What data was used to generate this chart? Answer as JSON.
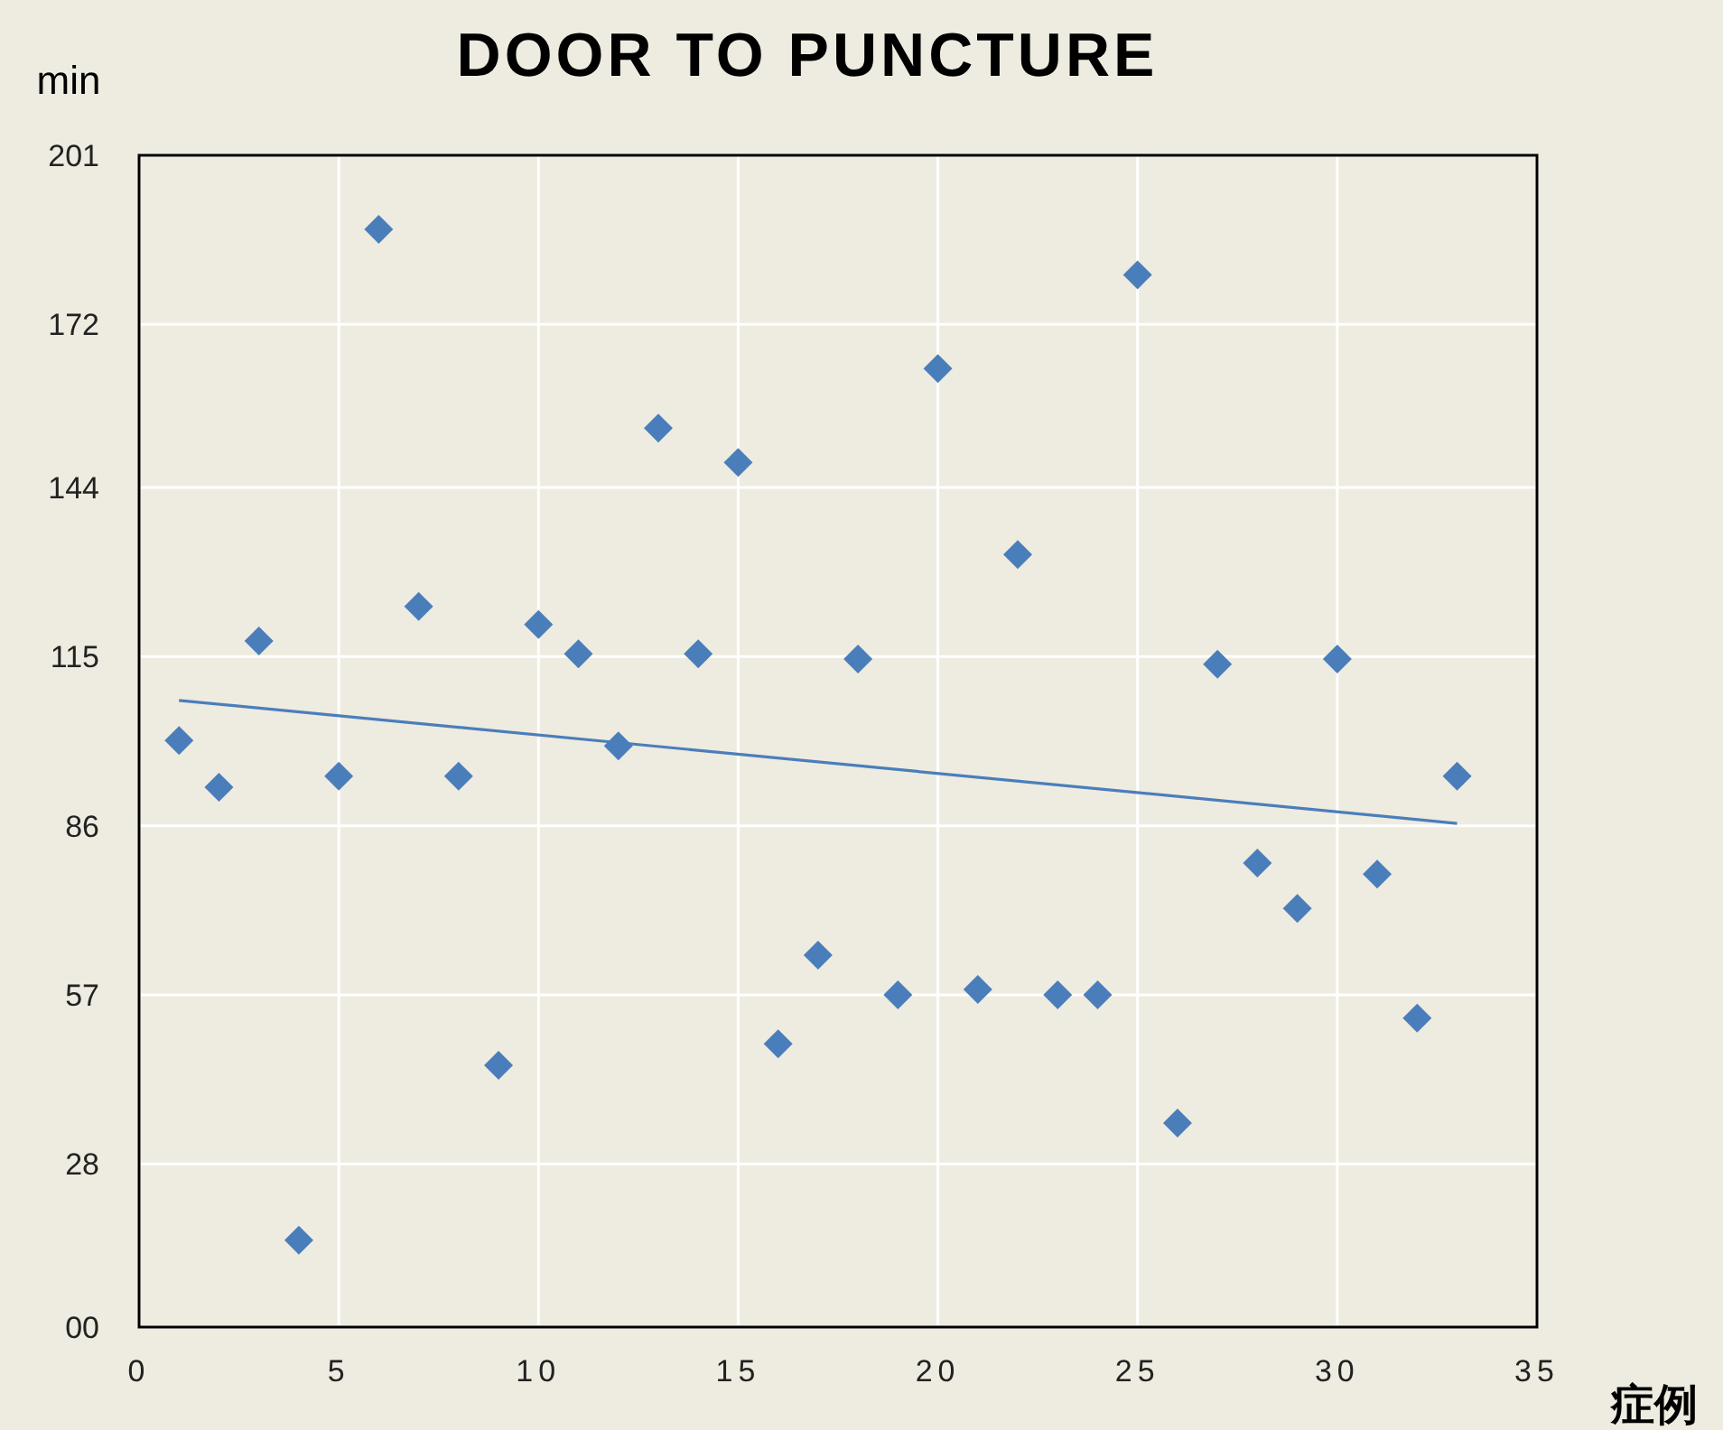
{
  "chart_data": {
    "type": "scatter",
    "title": "DOOR TO PUNCTURE",
    "xlabel": "症例",
    "ylabel": "min",
    "x": [
      1,
      2,
      3,
      4,
      5,
      6,
      7,
      8,
      9,
      10,
      11,
      12,
      13,
      14,
      15,
      16,
      17,
      18,
      19,
      20,
      21,
      22,
      23,
      24,
      25,
      26,
      27,
      28,
      29,
      30,
      31,
      32,
      33
    ],
    "series": [
      {
        "color": "#4a7ebb",
        "marker": "diamond",
        "values": [
          100.6,
          92.6,
          117.7,
          14.9,
          94.5,
          188.3,
          123.6,
          94.5,
          44.9,
          120.5,
          115.5,
          99.7,
          154.2,
          115.5,
          148.3,
          48.6,
          63.8,
          114.6,
          57.0,
          164.4,
          57.9,
          132.5,
          57.0,
          57.0,
          180.5,
          35.0,
          113.7,
          79.6,
          71.8,
          114.6,
          77.7,
          53.0,
          94.5
        ]
      },
      {
        "type": "line",
        "color": "#4a7ebb",
        "marker": "none",
        "x": [
          1,
          33
        ],
        "values": [
          107.5,
          86.4
        ]
      }
    ],
    "xlim": [
      0,
      35
    ],
    "xticks": [
      0,
      5,
      10,
      15,
      20,
      25,
      30,
      35
    ],
    "ylim": [
      0,
      201
    ],
    "yticks": [
      {
        "value": 0,
        "label": "00"
      },
      28,
      57,
      86,
      115,
      144,
      172,
      {
        "value": 201,
        "label": "201"
      }
    ],
    "grid": true
  }
}
